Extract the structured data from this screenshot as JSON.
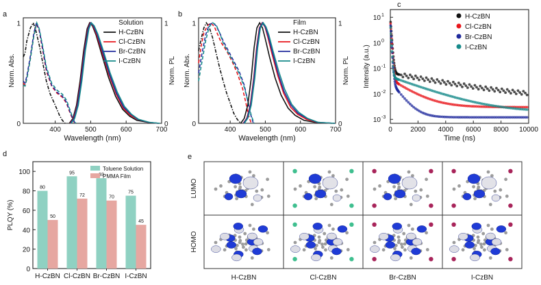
{
  "panels": [
    {
      "letter": "a",
      "legend_title": "Solution",
      "xlabel": "Wavelength (nm)",
      "ylabel_left": "Norm. Abs.",
      "ylabel_right": "Norm. PL",
      "xticks": [
        "400",
        "500",
        "600",
        "700"
      ],
      "ytick_top": "1",
      "ytick_bottom": "0",
      "legend": [
        "H-CzBN",
        "Cl-CzBN",
        "Br-CzBN",
        "I-CzBN"
      ]
    },
    {
      "letter": "b",
      "legend_title": "Film",
      "xlabel": "Wavelength (nm)",
      "ylabel_left": "Norm. Abs.",
      "ylabel_right": "Norm. PL",
      "xticks": [
        "400",
        "500",
        "600",
        "700"
      ],
      "ytick_top": "1",
      "ytick_bottom": "0",
      "legend": [
        "H-CzBN",
        "Cl-CzBN",
        "Br-CzBN",
        "I-CzBN"
      ]
    },
    {
      "letter": "c",
      "xlabel": "Time (ns)",
      "ylabel": "Intensity (a.u.)",
      "xticks": [
        "0",
        "2000",
        "4000",
        "6000",
        "8000",
        "10000"
      ],
      "yticks": [
        "10",
        "10",
        "10",
        "10",
        "10"
      ],
      "yexp": [
        "1",
        "0",
        "-1",
        "-2",
        "-3"
      ],
      "legend": [
        "H-CzBN",
        "Cl-CzBN",
        "Br-CzBN",
        "I-CzBN"
      ]
    },
    {
      "letter": "d",
      "ylabel": "PLQY (%)",
      "yticks": [
        "0",
        "20",
        "40",
        "60",
        "80",
        "100"
      ],
      "legend": [
        "Toluene Solution",
        "PMMA Film"
      ],
      "categories": [
        "H-CzBN",
        "Cl-CzBN",
        "Br-CzBN",
        "I-CzBN"
      ]
    },
    {
      "letter": "e",
      "row_labels": [
        "LUMO",
        "HOMO"
      ],
      "col_labels": [
        "H-CzBN",
        "Cl-CzBN",
        "Br-CzBN",
        "I-CzBN"
      ]
    }
  ],
  "colors": {
    "H": "#111111",
    "Cl": "#e8161b",
    "Br": "#1f2a9c",
    "I": "#168a8a",
    "bar_solution": "#8fd1c2",
    "bar_film": "#e6a7a1"
  },
  "chart_data": [
    {
      "panel": "a",
      "type": "line",
      "title": "Solution",
      "xlabel": "Wavelength (nm)",
      "ylabel": "Norm. Abs. / Norm. PL",
      "xlim": [
        310,
        700
      ],
      "ylim": [
        0,
        1.05
      ],
      "series": [
        {
          "name": "H-CzBN abs",
          "x": [
            310,
            315,
            320,
            330,
            338,
            345,
            355,
            365,
            375,
            385,
            395,
            405,
            412,
            420,
            428
          ],
          "y": [
            0.66,
            0.7,
            0.82,
            0.95,
            1.0,
            0.93,
            0.78,
            0.6,
            0.42,
            0.3,
            0.22,
            0.14,
            0.08,
            0.03,
            0.0
          ]
        },
        {
          "name": "Cl-CzBN abs",
          "x": [
            310,
            315,
            320,
            330,
            340,
            347,
            355,
            365,
            375,
            390,
            405,
            420,
            432,
            440,
            448,
            455
          ],
          "y": [
            0.4,
            0.38,
            0.45,
            0.65,
            0.88,
            0.99,
            0.92,
            0.72,
            0.52,
            0.37,
            0.3,
            0.26,
            0.2,
            0.12,
            0.05,
            0.0
          ]
        },
        {
          "name": "Br-CzBN abs",
          "x": [
            310,
            315,
            320,
            330,
            340,
            347,
            355,
            365,
            375,
            390,
            405,
            420,
            432,
            440,
            448,
            456
          ],
          "y": [
            0.42,
            0.4,
            0.47,
            0.67,
            0.9,
            1.0,
            0.93,
            0.74,
            0.54,
            0.38,
            0.31,
            0.27,
            0.21,
            0.13,
            0.06,
            0.0
          ]
        },
        {
          "name": "I-CzBN abs",
          "x": [
            310,
            315,
            320,
            330,
            340,
            348,
            355,
            365,
            375,
            390,
            405,
            420,
            432,
            440,
            448,
            458
          ],
          "y": [
            0.38,
            0.37,
            0.44,
            0.64,
            0.87,
            1.0,
            0.94,
            0.76,
            0.56,
            0.4,
            0.33,
            0.29,
            0.23,
            0.15,
            0.07,
            0.0
          ]
        },
        {
          "name": "H-CzBN PL",
          "x": [
            440,
            450,
            460,
            470,
            480,
            490,
            497,
            505,
            515,
            530,
            550,
            570,
            590,
            610,
            630,
            660,
            690
          ],
          "y": [
            0.0,
            0.05,
            0.18,
            0.42,
            0.72,
            0.94,
            1.0,
            0.97,
            0.88,
            0.7,
            0.46,
            0.27,
            0.14,
            0.07,
            0.03,
            0.01,
            0.0
          ]
        },
        {
          "name": "Cl-CzBN PL",
          "x": [
            442,
            452,
            462,
            472,
            482,
            492,
            499,
            507,
            517,
            532,
            552,
            572,
            592,
            612,
            632,
            662,
            692
          ],
          "y": [
            0.0,
            0.05,
            0.18,
            0.42,
            0.72,
            0.94,
            1.0,
            0.97,
            0.88,
            0.71,
            0.48,
            0.29,
            0.15,
            0.08,
            0.04,
            0.01,
            0.0
          ]
        },
        {
          "name": "Br-CzBN PL",
          "x": [
            443,
            453,
            463,
            473,
            483,
            493,
            500,
            508,
            518,
            533,
            553,
            573,
            593,
            613,
            633,
            663,
            693
          ],
          "y": [
            0.0,
            0.05,
            0.18,
            0.42,
            0.72,
            0.94,
            1.0,
            0.97,
            0.89,
            0.72,
            0.49,
            0.3,
            0.16,
            0.09,
            0.04,
            0.01,
            0.0
          ]
        },
        {
          "name": "I-CzBN PL",
          "x": [
            445,
            455,
            465,
            475,
            485,
            495,
            502,
            510,
            520,
            535,
            555,
            575,
            595,
            615,
            635,
            665,
            695
          ],
          "y": [
            0.0,
            0.05,
            0.18,
            0.42,
            0.72,
            0.94,
            1.0,
            0.97,
            0.89,
            0.73,
            0.5,
            0.31,
            0.17,
            0.09,
            0.04,
            0.01,
            0.0
          ]
        }
      ]
    },
    {
      "panel": "b",
      "type": "line",
      "title": "Film",
      "xlabel": "Wavelength (nm)",
      "ylabel": "Norm. Abs. / Norm. PL",
      "xlim": [
        310,
        700
      ],
      "ylim": [
        0,
        1.05
      ],
      "series": [
        {
          "name": "H-CzBN abs",
          "x": [
            310,
            318,
            325,
            332,
            340,
            350,
            360,
            370,
            380,
            390,
            400,
            410,
            420,
            430
          ],
          "y": [
            0.72,
            0.85,
            0.95,
            1.0,
            0.96,
            0.85,
            0.7,
            0.55,
            0.42,
            0.3,
            0.2,
            0.1,
            0.04,
            0.0
          ]
        },
        {
          "name": "Cl-CzBN abs",
          "x": [
            310,
            318,
            325,
            335,
            345,
            355,
            365,
            375,
            390,
            405,
            420,
            435,
            445,
            452,
            460
          ],
          "y": [
            0.6,
            0.78,
            0.9,
            0.97,
            1.0,
            0.96,
            0.88,
            0.8,
            0.72,
            0.62,
            0.5,
            0.35,
            0.2,
            0.08,
            0.0
          ]
        },
        {
          "name": "Br-CzBN abs",
          "x": [
            310,
            320,
            330,
            340,
            350,
            360,
            370,
            380,
            395,
            410,
            425,
            440,
            450,
            458,
            466
          ],
          "y": [
            0.5,
            0.7,
            0.88,
            0.98,
            1.0,
            0.97,
            0.9,
            0.82,
            0.72,
            0.62,
            0.52,
            0.38,
            0.22,
            0.09,
            0.0
          ]
        },
        {
          "name": "I-CzBN abs",
          "x": [
            310,
            320,
            330,
            340,
            350,
            360,
            370,
            380,
            395,
            410,
            425,
            440,
            452,
            460,
            468
          ],
          "y": [
            0.42,
            0.62,
            0.82,
            0.96,
            1.0,
            0.98,
            0.9,
            0.8,
            0.7,
            0.6,
            0.5,
            0.36,
            0.2,
            0.08,
            0.0
          ]
        },
        {
          "name": "H-CzBN PL",
          "x": [
            430,
            440,
            450,
            460,
            468,
            476,
            484,
            492,
            500,
            512,
            528,
            545,
            565,
            585,
            610,
            640,
            690
          ],
          "y": [
            0.0,
            0.05,
            0.18,
            0.45,
            0.75,
            0.95,
            1.0,
            0.95,
            0.84,
            0.66,
            0.45,
            0.28,
            0.15,
            0.08,
            0.03,
            0.01,
            0.0
          ]
        },
        {
          "name": "Cl-CzBN PL",
          "x": [
            437,
            447,
            457,
            467,
            475,
            483,
            491,
            499,
            507,
            519,
            535,
            552,
            572,
            592,
            617,
            647,
            695
          ],
          "y": [
            0.0,
            0.05,
            0.18,
            0.45,
            0.75,
            0.95,
            1.0,
            0.96,
            0.86,
            0.69,
            0.48,
            0.3,
            0.16,
            0.09,
            0.04,
            0.01,
            0.0
          ]
        },
        {
          "name": "Br-CzBN PL",
          "x": [
            438,
            448,
            458,
            468,
            476,
            484,
            492,
            500,
            508,
            520,
            536,
            553,
            573,
            593,
            618,
            648,
            698
          ],
          "y": [
            0.0,
            0.05,
            0.18,
            0.45,
            0.75,
            0.95,
            1.0,
            0.96,
            0.87,
            0.71,
            0.5,
            0.32,
            0.18,
            0.1,
            0.05,
            0.01,
            0.0
          ]
        },
        {
          "name": "I-CzBN PL",
          "x": [
            440,
            450,
            460,
            470,
            478,
            486,
            494,
            502,
            510,
            522,
            538,
            555,
            575,
            595,
            620,
            650,
            698
          ],
          "y": [
            0.0,
            0.05,
            0.18,
            0.45,
            0.75,
            0.95,
            1.0,
            0.96,
            0.88,
            0.72,
            0.52,
            0.34,
            0.19,
            0.11,
            0.05,
            0.01,
            0.0
          ]
        }
      ]
    },
    {
      "panel": "c",
      "type": "scatter",
      "xlabel": "Time (ns)",
      "ylabel": "Intensity (a.u.)",
      "yscale": "log",
      "xlim": [
        0,
        10000
      ],
      "ylim": [
        0.0007,
        20
      ],
      "series": [
        {
          "name": "H-CzBN",
          "fast_amp": 9.0,
          "fast_tau": 60,
          "slow_amp": 0.06,
          "slow_tau": 4000,
          "floor": 0.0055,
          "t_end": 10000
        },
        {
          "name": "Cl-CzBN",
          "fast_amp": 8.0,
          "fast_tau": 55,
          "slow_amp": 0.035,
          "slow_tau": 1200,
          "floor": 0.003,
          "t_end": 10000
        },
        {
          "name": "Br-CzBN",
          "fast_amp": 7.0,
          "fast_tau": 50,
          "slow_amp": 0.03,
          "slow_tau": 600,
          "floor": 0.0012,
          "t_end": 10000
        },
        {
          "name": "I-CzBN",
          "fast_amp": 6.0,
          "fast_tau": 45,
          "slow_amp": 0.045,
          "slow_tau": 2200,
          "floor": 0.0019,
          "t_end": 10000
        }
      ]
    },
    {
      "panel": "d",
      "type": "bar",
      "categories": [
        "H-CzBN",
        "Cl-CzBN",
        "Br-CzBN",
        "I-CzBN"
      ],
      "ylabel": "PLQY (%)",
      "ylim": [
        0,
        110
      ],
      "series": [
        {
          "name": "Toluene Solution",
          "values": [
            80,
            95,
            93,
            75
          ]
        },
        {
          "name": "PMMA Film",
          "values": [
            50,
            72,
            70,
            45
          ]
        }
      ]
    }
  ]
}
